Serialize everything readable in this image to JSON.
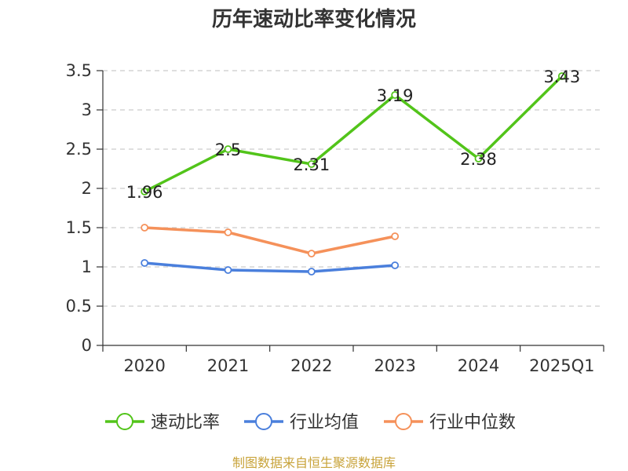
{
  "chart_data": {
    "type": "line",
    "title": "历年速动比率变化情况",
    "categories": [
      "2020",
      "2021",
      "2022",
      "2023",
      "2024",
      "2025Q1"
    ],
    "ylim": [
      0,
      3.5
    ],
    "yticks": [
      "0",
      "0.5",
      "1",
      "1.5",
      "2",
      "2.5",
      "3",
      "3.5"
    ],
    "grid": true,
    "legend_position": "bottom",
    "series": [
      {
        "name": "速动比率",
        "color": "#52c41a",
        "show_labels": true,
        "values": [
          1.96,
          2.5,
          2.31,
          3.19,
          2.38,
          3.43
        ],
        "labels": [
          "1.96",
          "2.5",
          "2.31",
          "3.19",
          "2.38",
          "3.43"
        ]
      },
      {
        "name": "行业均值",
        "color": "#4a7fdc",
        "show_labels": false,
        "values": [
          1.05,
          0.96,
          0.94,
          1.02,
          null,
          null
        ]
      },
      {
        "name": "行业中位数",
        "color": "#f5915a",
        "show_labels": false,
        "values": [
          1.5,
          1.44,
          1.17,
          1.39,
          null,
          null
        ]
      }
    ]
  },
  "footer": {
    "source": "制图数据来自恒生聚源数据库"
  }
}
